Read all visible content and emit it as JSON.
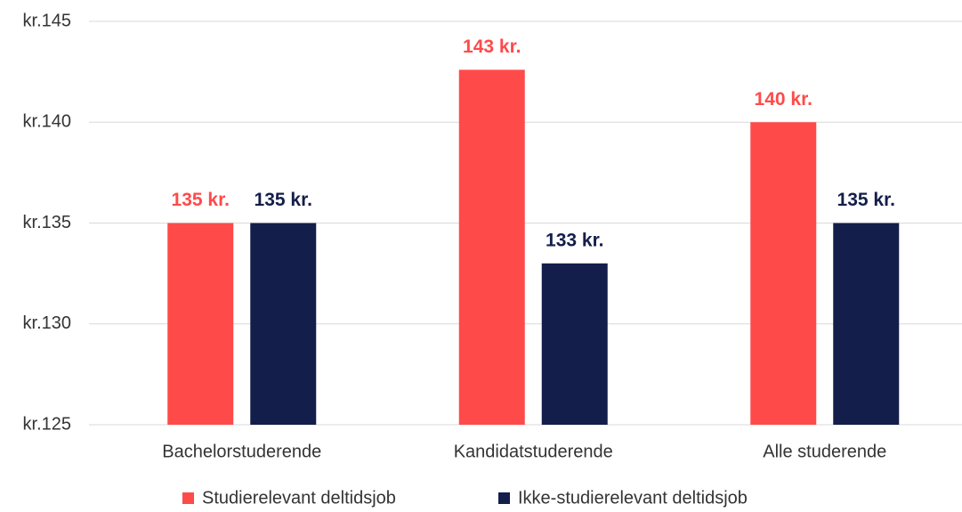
{
  "chart_data": {
    "type": "bar",
    "categories": [
      "Bachelorstuderende",
      "Kandidatstuderende",
      "Alle studerende"
    ],
    "series": [
      {
        "name": "Studierelevant deltidsjob",
        "color": "#ff4a4a",
        "values": [
          135,
          142.6,
          140
        ],
        "value_labels": [
          "135 kr.",
          "143 kr.",
          "140 kr."
        ]
      },
      {
        "name": "Ikke-studierelevant deltidsjob",
        "color": "#141e4b",
        "values": [
          135,
          133,
          135
        ],
        "value_labels": [
          "135 kr.",
          "133 kr.",
          "135 kr."
        ]
      }
    ],
    "ylim": [
      125,
      145
    ],
    "yticks": [
      {
        "value": 125,
        "label": "kr.125"
      },
      {
        "value": 130,
        "label": "kr.130"
      },
      {
        "value": 135,
        "label": "kr.135"
      },
      {
        "value": 140,
        "label": "kr.140"
      },
      {
        "value": 145,
        "label": "kr.145"
      }
    ],
    "grid": true,
    "legend": "bottom"
  }
}
